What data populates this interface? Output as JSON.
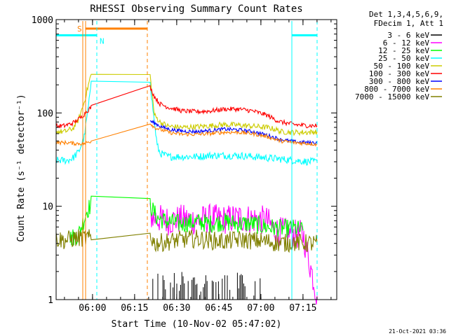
{
  "chart_data": {
    "type": "line",
    "title": "RHESSI Observing Summary Count Rates",
    "xlabel": "Start Time (10-Nov-02 05:47:02)",
    "ylabel": "Count Rate (s⁻¹ detector⁻¹)",
    "yscale": "log",
    "ylim": [
      1,
      1000
    ],
    "xlim_minutes": [
      0,
      100
    ],
    "x_unit": "minutes after 05:47:02",
    "y_ticks": [
      {
        "value": 1,
        "label": "1"
      },
      {
        "value": 10,
        "label": "10"
      },
      {
        "value": 100,
        "label": "100"
      },
      {
        "value": 1000,
        "label": "1000"
      }
    ],
    "x_ticks": [
      {
        "minute": 12.97,
        "label": "06:00"
      },
      {
        "minute": 27.97,
        "label": "06:15"
      },
      {
        "minute": 42.97,
        "label": "06:30"
      },
      {
        "minute": 57.97,
        "label": "06:45"
      },
      {
        "minute": 72.97,
        "label": "07:00"
      },
      {
        "minute": 87.97,
        "label": "07:15"
      }
    ],
    "legend_header": [
      "Det 1,3,4,5,6,9,",
      "FDecim 1, Att 1"
    ],
    "series": [
      {
        "name": "3 - 6 keV",
        "color": "#000000",
        "points": [
          [
            34,
            1.6
          ],
          [
            37,
            1.8
          ],
          [
            40,
            1.7
          ],
          [
            45,
            1.6
          ],
          [
            50,
            1.7
          ],
          [
            55,
            1.8
          ],
          [
            60,
            1.6
          ],
          [
            65,
            1.7
          ],
          [
            70,
            1.6
          ],
          [
            73,
            1.5
          ]
        ]
      },
      {
        "name": "6 - 12 keV",
        "color": "#ff00ff",
        "points": [
          [
            33.5,
            8.0
          ],
          [
            35,
            7.5
          ],
          [
            40,
            7.0
          ],
          [
            45,
            7.3
          ],
          [
            50,
            7.0
          ],
          [
            55,
            7.4
          ],
          [
            60,
            7.2
          ],
          [
            65,
            7.5
          ],
          [
            70,
            7.3
          ],
          [
            75,
            7.0
          ],
          [
            78,
            5.5
          ],
          [
            85,
            5.0
          ],
          [
            88,
            5.0
          ],
          [
            93,
            1.1
          ]
        ]
      },
      {
        "name": "12 - 25 keV",
        "color": "#00ff00",
        "points": [
          [
            5,
            4.5
          ],
          [
            8,
            5.0
          ],
          [
            9,
            6.0
          ],
          [
            11,
            9.0
          ],
          [
            12.5,
            10.5
          ],
          [
            33.5,
            10.5
          ],
          [
            34.5,
            9.0
          ],
          [
            36,
            7.5
          ],
          [
            40,
            6.8
          ],
          [
            45,
            6.5
          ],
          [
            50,
            6.8
          ],
          [
            55,
            6.5
          ],
          [
            60,
            6.8
          ],
          [
            65,
            6.5
          ],
          [
            70,
            6.5
          ],
          [
            75,
            6.0
          ],
          [
            80,
            5.8
          ],
          [
            85,
            5.8
          ],
          [
            88,
            5.5
          ]
        ]
      },
      {
        "name": "25 - 50 keV",
        "color": "#00ffff",
        "points": [
          [
            0,
            31
          ],
          [
            4,
            31
          ],
          [
            6,
            33
          ],
          [
            8,
            38
          ],
          [
            10,
            55
          ],
          [
            12,
            150
          ],
          [
            12.5,
            230
          ],
          [
            33.5,
            230
          ],
          [
            34,
            150
          ],
          [
            35,
            80
          ],
          [
            36,
            45
          ],
          [
            37,
            37
          ],
          [
            40,
            34
          ],
          [
            45,
            34
          ],
          [
            50,
            34
          ],
          [
            55,
            35
          ],
          [
            60,
            35
          ],
          [
            65,
            35
          ],
          [
            70,
            34
          ],
          [
            75,
            33
          ],
          [
            80,
            32
          ],
          [
            85,
            31
          ],
          [
            90,
            30
          ],
          [
            93,
            30
          ]
        ]
      },
      {
        "name": "50 - 100 keV",
        "color": "#cccc00",
        "points": [
          [
            0,
            63
          ],
          [
            3,
            63
          ],
          [
            6,
            68
          ],
          [
            8,
            85
          ],
          [
            10,
            130
          ],
          [
            12,
            230
          ],
          [
            12.5,
            260
          ],
          [
            33.5,
            250
          ],
          [
            35,
            95
          ],
          [
            37,
            80
          ],
          [
            40,
            72
          ],
          [
            45,
            70
          ],
          [
            50,
            71
          ],
          [
            55,
            73
          ],
          [
            60,
            75
          ],
          [
            65,
            74
          ],
          [
            70,
            72
          ],
          [
            75,
            70
          ],
          [
            78,
            67
          ],
          [
            80,
            63
          ],
          [
            85,
            62
          ],
          [
            90,
            62
          ],
          [
            93,
            63
          ]
        ]
      },
      {
        "name": "100 - 300 keV",
        "color": "#ff0000",
        "points": [
          [
            0,
            72
          ],
          [
            3,
            73
          ],
          [
            6,
            78
          ],
          [
            9,
            90
          ],
          [
            11,
            105
          ],
          [
            12.5,
            115
          ],
          [
            33.5,
            190
          ],
          [
            35,
            150
          ],
          [
            37,
            125
          ],
          [
            40,
            115
          ],
          [
            45,
            105
          ],
          [
            50,
            103
          ],
          [
            55,
            105
          ],
          [
            60,
            110
          ],
          [
            65,
            110
          ],
          [
            70,
            105
          ],
          [
            75,
            95
          ],
          [
            78,
            85
          ],
          [
            80,
            80
          ],
          [
            85,
            75
          ],
          [
            90,
            73
          ],
          [
            93,
            73
          ]
        ]
      },
      {
        "name": "300 - 800 keV",
        "color": "#0000ff",
        "points": [
          [
            33.5,
            82
          ],
          [
            35,
            78
          ],
          [
            38,
            70
          ],
          [
            41,
            66
          ],
          [
            45,
            64
          ],
          [
            50,
            63
          ],
          [
            55,
            65
          ],
          [
            60,
            67
          ],
          [
            65,
            66
          ],
          [
            70,
            63
          ],
          [
            75,
            58
          ],
          [
            80,
            52
          ],
          [
            85,
            49
          ],
          [
            90,
            48
          ],
          [
            93,
            48
          ]
        ]
      },
      {
        "name": "800 - 7000 keV",
        "color": "#ff8000",
        "points": [
          [
            0,
            48
          ],
          [
            4,
            48
          ],
          [
            7,
            47
          ],
          [
            10,
            47
          ],
          [
            12.5,
            50
          ],
          [
            33.5,
            78
          ],
          [
            35,
            70
          ],
          [
            38,
            65
          ],
          [
            41,
            61
          ],
          [
            45,
            59
          ],
          [
            50,
            59
          ],
          [
            55,
            60
          ],
          [
            60,
            62
          ],
          [
            65,
            62
          ],
          [
            70,
            60
          ],
          [
            75,
            56
          ],
          [
            80,
            50
          ],
          [
            85,
            48
          ],
          [
            90,
            47
          ],
          [
            93,
            46
          ]
        ]
      },
      {
        "name": "7000 - 15000 keV",
        "color": "#808000",
        "points": [
          [
            0,
            4.5
          ],
          [
            3,
            4.3
          ],
          [
            6,
            4.5
          ],
          [
            9,
            4.6
          ],
          [
            12.5,
            4.5
          ],
          [
            33.5,
            5.0
          ],
          [
            35,
            4.0
          ],
          [
            40,
            4.2
          ],
          [
            45,
            4.4
          ],
          [
            50,
            4.5
          ],
          [
            55,
            4.3
          ],
          [
            60,
            4.2
          ],
          [
            65,
            4.4
          ],
          [
            70,
            4.3
          ],
          [
            75,
            4.2
          ],
          [
            80,
            4.0
          ],
          [
            85,
            4.1
          ],
          [
            90,
            4.0
          ],
          [
            93,
            4.0
          ]
        ]
      }
    ],
    "flag_markers": [
      {
        "label": "S",
        "color": "#ff8000",
        "start_minute": 10.5,
        "end_minute": 32.5
      },
      {
        "label": "N",
        "color": "#00ffff",
        "start_minute": 0,
        "end_minute": 14.5
      }
    ],
    "cyan_night_bar_right": {
      "start_minute": 84,
      "end_minute": 93
    },
    "vertical_lines": [
      {
        "minute": 0,
        "color": "#00ffff",
        "style": "solid"
      },
      {
        "minute": 14.5,
        "color": "#00ffff",
        "style": "dashed"
      },
      {
        "minute": 84,
        "color": "#00ffff",
        "style": "solid"
      },
      {
        "minute": 93,
        "color": "#00ffff",
        "style": "dashed"
      },
      {
        "minute": 9.5,
        "color": "#ff8000",
        "style": "solid"
      },
      {
        "minute": 10.5,
        "color": "#ff8000",
        "style": "solid"
      },
      {
        "minute": 32.5,
        "color": "#ff8000",
        "style": "dashed"
      }
    ],
    "footer_date": "21-Oct-2021 03:36"
  }
}
